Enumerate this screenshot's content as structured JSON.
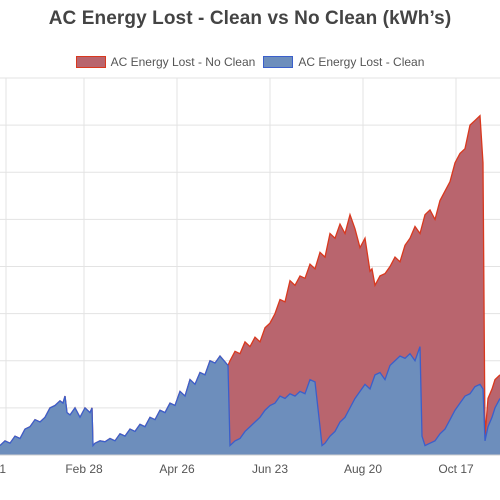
{
  "chart_data": {
    "type": "area",
    "title": "AC Energy Lost - Clean vs No Clean (kWh’s)",
    "xlabel": "",
    "ylabel": "",
    "ylim": [
      0,
      800
    ],
    "x_ticks": [
      "1",
      "Feb 28",
      "Apr 26",
      "Jun 23",
      "Aug 20",
      "Oct 17"
    ],
    "grid": true,
    "legend_position": "top-center",
    "series": [
      {
        "name": "AC Energy Lost - No Clean",
        "fill": "#b9656e",
        "stroke": "#d9381e",
        "points": [
          [
            0,
            20
          ],
          [
            5,
            30
          ],
          [
            10,
            25
          ],
          [
            15,
            40
          ],
          [
            20,
            35
          ],
          [
            25,
            55
          ],
          [
            30,
            60
          ],
          [
            35,
            75
          ],
          [
            40,
            70
          ],
          [
            45,
            80
          ],
          [
            50,
            100
          ],
          [
            55,
            105
          ],
          [
            60,
            115
          ],
          [
            63,
            110
          ],
          [
            65,
            125
          ],
          [
            67,
            90
          ],
          [
            70,
            85
          ],
          [
            75,
            100
          ],
          [
            80,
            80
          ],
          [
            85,
            100
          ],
          [
            90,
            90
          ],
          [
            92,
            100
          ],
          [
            93,
            20
          ],
          [
            95,
            25
          ],
          [
            100,
            30
          ],
          [
            105,
            28
          ],
          [
            110,
            35
          ],
          [
            115,
            30
          ],
          [
            120,
            45
          ],
          [
            125,
            40
          ],
          [
            130,
            55
          ],
          [
            135,
            50
          ],
          [
            140,
            65
          ],
          [
            145,
            60
          ],
          [
            150,
            80
          ],
          [
            155,
            75
          ],
          [
            160,
            95
          ],
          [
            165,
            90
          ],
          [
            170,
            110
          ],
          [
            175,
            105
          ],
          [
            180,
            135
          ],
          [
            185,
            125
          ],
          [
            190,
            160
          ],
          [
            195,
            150
          ],
          [
            200,
            175
          ],
          [
            205,
            170
          ],
          [
            210,
            200
          ],
          [
            215,
            195
          ],
          [
            220,
            210
          ],
          [
            228,
            190
          ],
          [
            230,
            200
          ],
          [
            235,
            220
          ],
          [
            240,
            215
          ],
          [
            245,
            240
          ],
          [
            250,
            230
          ],
          [
            255,
            250
          ],
          [
            260,
            240
          ],
          [
            265,
            270
          ],
          [
            270,
            280
          ],
          [
            275,
            300
          ],
          [
            280,
            330
          ],
          [
            285,
            325
          ],
          [
            290,
            370
          ],
          [
            295,
            360
          ],
          [
            300,
            380
          ],
          [
            305,
            375
          ],
          [
            310,
            405
          ],
          [
            315,
            395
          ],
          [
            320,
            430
          ],
          [
            325,
            420
          ],
          [
            330,
            470
          ],
          [
            335,
            460
          ],
          [
            340,
            490
          ],
          [
            345,
            470
          ],
          [
            350,
            510
          ],
          [
            355,
            480
          ],
          [
            360,
            440
          ],
          [
            365,
            460
          ],
          [
            370,
            390
          ],
          [
            372,
            395
          ],
          [
            375,
            360
          ],
          [
            380,
            380
          ],
          [
            385,
            385
          ],
          [
            390,
            400
          ],
          [
            395,
            420
          ],
          [
            400,
            410
          ],
          [
            405,
            445
          ],
          [
            410,
            460
          ],
          [
            415,
            485
          ],
          [
            420,
            470
          ],
          [
            425,
            510
          ],
          [
            430,
            520
          ],
          [
            435,
            500
          ],
          [
            440,
            540
          ],
          [
            445,
            560
          ],
          [
            450,
            580
          ],
          [
            455,
            620
          ],
          [
            460,
            640
          ],
          [
            465,
            650
          ],
          [
            470,
            700
          ],
          [
            475,
            710
          ],
          [
            480,
            720
          ],
          [
            483,
            620
          ],
          [
            485,
            40
          ],
          [
            488,
            120
          ],
          [
            492,
            140
          ],
          [
            495,
            160
          ],
          [
            500,
            170
          ]
        ]
      },
      {
        "name": "AC Energy Lost - Clean",
        "fill": "#6d8ebc",
        "stroke": "#3b5fcb",
        "points": [
          [
            0,
            20
          ],
          [
            5,
            30
          ],
          [
            10,
            25
          ],
          [
            15,
            40
          ],
          [
            20,
            35
          ],
          [
            25,
            55
          ],
          [
            30,
            60
          ],
          [
            35,
            75
          ],
          [
            40,
            70
          ],
          [
            45,
            80
          ],
          [
            50,
            100
          ],
          [
            55,
            105
          ],
          [
            60,
            115
          ],
          [
            63,
            110
          ],
          [
            65,
            125
          ],
          [
            67,
            90
          ],
          [
            70,
            85
          ],
          [
            75,
            100
          ],
          [
            80,
            80
          ],
          [
            85,
            100
          ],
          [
            90,
            90
          ],
          [
            92,
            100
          ],
          [
            93,
            20
          ],
          [
            95,
            25
          ],
          [
            100,
            30
          ],
          [
            105,
            28
          ],
          [
            110,
            35
          ],
          [
            115,
            30
          ],
          [
            120,
            45
          ],
          [
            125,
            40
          ],
          [
            130,
            55
          ],
          [
            135,
            50
          ],
          [
            140,
            65
          ],
          [
            145,
            60
          ],
          [
            150,
            80
          ],
          [
            155,
            75
          ],
          [
            160,
            95
          ],
          [
            165,
            90
          ],
          [
            170,
            110
          ],
          [
            175,
            105
          ],
          [
            180,
            135
          ],
          [
            185,
            125
          ],
          [
            190,
            160
          ],
          [
            195,
            150
          ],
          [
            200,
            175
          ],
          [
            205,
            170
          ],
          [
            210,
            200
          ],
          [
            215,
            195
          ],
          [
            220,
            210
          ],
          [
            228,
            190
          ],
          [
            230,
            20
          ],
          [
            235,
            30
          ],
          [
            240,
            35
          ],
          [
            245,
            50
          ],
          [
            250,
            60
          ],
          [
            255,
            70
          ],
          [
            260,
            80
          ],
          [
            265,
            95
          ],
          [
            270,
            105
          ],
          [
            275,
            110
          ],
          [
            280,
            125
          ],
          [
            285,
            120
          ],
          [
            290,
            130
          ],
          [
            295,
            125
          ],
          [
            300,
            135
          ],
          [
            305,
            130
          ],
          [
            310,
            160
          ],
          [
            315,
            155
          ],
          [
            320,
            60
          ],
          [
            322,
            20
          ],
          [
            325,
            25
          ],
          [
            330,
            40
          ],
          [
            335,
            50
          ],
          [
            340,
            70
          ],
          [
            345,
            80
          ],
          [
            350,
            100
          ],
          [
            355,
            120
          ],
          [
            360,
            135
          ],
          [
            365,
            150
          ],
          [
            370,
            140
          ],
          [
            375,
            170
          ],
          [
            380,
            175
          ],
          [
            385,
            160
          ],
          [
            390,
            190
          ],
          [
            395,
            200
          ],
          [
            400,
            210
          ],
          [
            405,
            205
          ],
          [
            410,
            215
          ],
          [
            415,
            200
          ],
          [
            420,
            230
          ],
          [
            422,
            40
          ],
          [
            425,
            20
          ],
          [
            430,
            25
          ],
          [
            435,
            30
          ],
          [
            440,
            45
          ],
          [
            445,
            55
          ],
          [
            450,
            75
          ],
          [
            455,
            95
          ],
          [
            460,
            110
          ],
          [
            465,
            125
          ],
          [
            470,
            130
          ],
          [
            475,
            145
          ],
          [
            480,
            150
          ],
          [
            483,
            140
          ],
          [
            485,
            30
          ],
          [
            488,
            60
          ],
          [
            492,
            80
          ],
          [
            495,
            100
          ],
          [
            500,
            120
          ]
        ]
      }
    ]
  }
}
